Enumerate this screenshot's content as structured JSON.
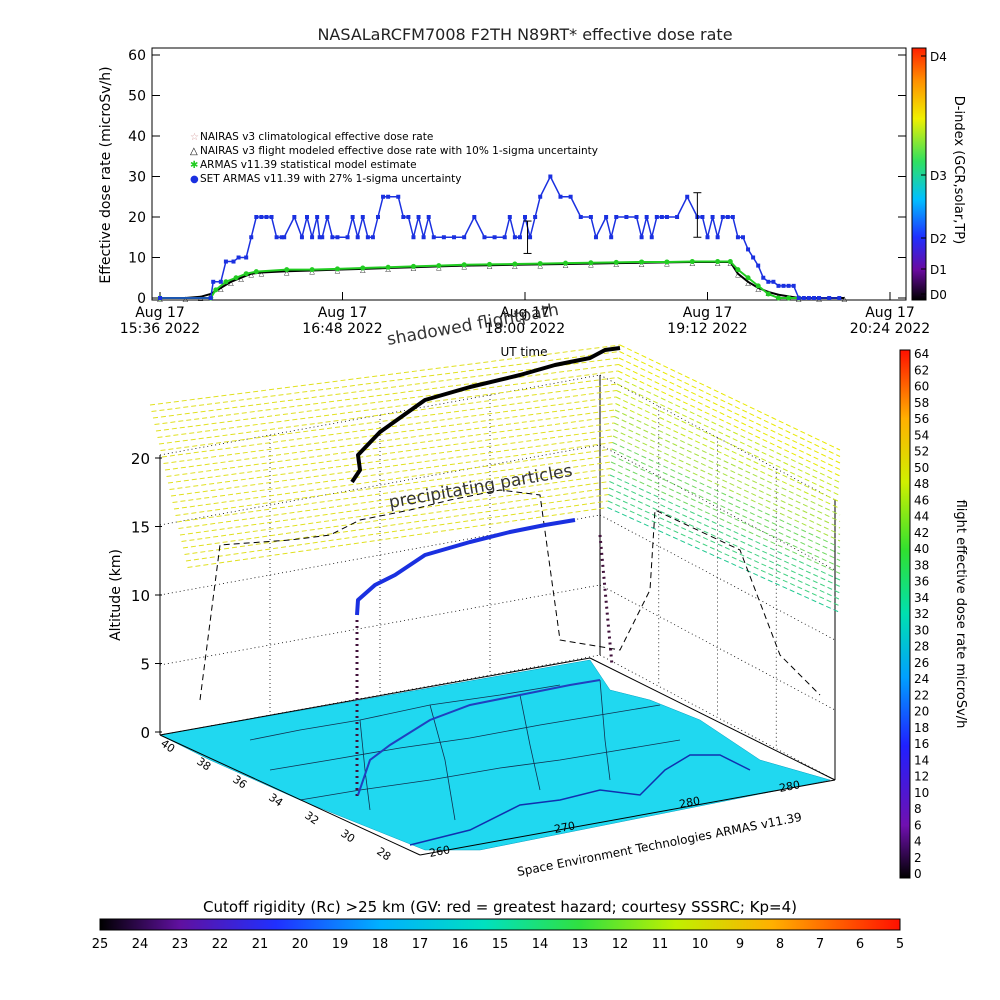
{
  "title": "NASALaRCFM7008  F2TH N89RT* effective dose rate",
  "chart_data": [
    {
      "type": "line",
      "title": "NASALaRCFM7008  F2TH N89RT* effective dose rate",
      "ylabel": "Effective dose rate (microSv/h)",
      "right_label": "D-index (GCR,solar,TP)",
      "ylim": [
        0,
        60
      ],
      "yticks": [
        "0",
        "10",
        "20",
        "30",
        "40",
        "50",
        "60"
      ],
      "xticks": [
        {
          "line1": "Aug 17",
          "line2": "15:36 2022"
        },
        {
          "line1": "Aug 17",
          "line2": "16:48 2022"
        },
        {
          "line1": "Aug 17",
          "line2": "18:00 2022"
        },
        {
          "line1": "Aug 17",
          "line2": "19:12 2022"
        },
        {
          "line1": "Aug 17",
          "line2": "20:24 2022"
        }
      ],
      "xlabel": "UT time",
      "xrange_minutes": [
        0,
        288
      ],
      "dindex_ticks": [
        "D0",
        "D1",
        "D2",
        "D3",
        "D4"
      ],
      "legend": [
        {
          "label": "NAIRAS v3 climatological effective dose rate",
          "color": "#d8a0a0"
        },
        {
          "label": "NAIRAS v3 flight modeled effective dose rate with 10% 1-sigma uncertainty",
          "color": "#000000"
        },
        {
          "label": "ARMAS v11.39 statistical model estimate",
          "color": "#22cc22"
        },
        {
          "label": "SET ARMAS v11.39 with 27% 1-sigma uncertainty",
          "color": "#1a30e0"
        }
      ],
      "series": [
        {
          "name": "SET ARMAS v11.39 with 27% 1-sigma uncertainty",
          "color": "#1a30e0",
          "x": [
            0,
            20,
            21,
            24,
            26,
            29,
            31,
            34,
            36,
            38,
            40,
            42,
            44,
            46,
            48,
            49,
            53,
            56,
            58,
            60,
            62,
            63,
            64,
            66,
            68,
            70,
            74,
            76,
            78,
            80,
            82,
            84,
            86,
            88,
            90,
            94,
            96,
            98,
            100,
            102,
            104,
            106,
            108,
            112,
            116,
            120,
            124,
            128,
            132,
            136,
            138,
            140,
            142,
            144,
            146,
            148,
            150,
            154,
            158,
            162,
            166,
            170,
            172,
            176,
            178,
            180,
            184,
            188,
            190,
            192,
            194,
            196,
            198,
            200,
            204,
            208,
            212,
            214,
            216,
            218,
            220,
            222,
            224,
            226,
            228,
            230,
            232,
            234,
            236,
            238,
            240,
            242,
            244,
            246,
            248,
            250,
            252,
            254,
            256,
            258,
            260,
            264,
            268
          ],
          "y": [
            0,
            0,
            4,
            4,
            9,
            9,
            10,
            10,
            15,
            20,
            20,
            20,
            20,
            15,
            15,
            15,
            20,
            15,
            20,
            15,
            20,
            15,
            15,
            20,
            15,
            15,
            15,
            20,
            15,
            20,
            15,
            15,
            20,
            25,
            25,
            25,
            20,
            20,
            15,
            20,
            15,
            20,
            15,
            15,
            15,
            15,
            20,
            15,
            15,
            15,
            20,
            15,
            15,
            20,
            15,
            20,
            25,
            30,
            25,
            25,
            20,
            20,
            15,
            20,
            15,
            20,
            20,
            20,
            15,
            20,
            15,
            20,
            20,
            20,
            20,
            25,
            20,
            20,
            15,
            20,
            15,
            20,
            20,
            20,
            15,
            15,
            12,
            10,
            8,
            5,
            4,
            4,
            3,
            3,
            3,
            3,
            0,
            0,
            0,
            0,
            0,
            0,
            0
          ]
        },
        {
          "name": "ARMAS v11.39 statistical model estimate",
          "color": "#22cc22",
          "x": [
            0,
            20,
            22,
            26,
            30,
            34,
            38,
            50,
            60,
            70,
            80,
            90,
            100,
            110,
            120,
            130,
            140,
            150,
            160,
            170,
            180,
            190,
            200,
            210,
            220,
            225,
            228,
            232,
            236,
            240,
            244,
            248,
            252
          ],
          "y": [
            0,
            0,
            2,
            4,
            5,
            6,
            6.5,
            7,
            7,
            7.2,
            7.4,
            7.6,
            7.8,
            8,
            8.2,
            8.3,
            8.4,
            8.5,
            8.6,
            8.7,
            8.8,
            8.9,
            8.9,
            9,
            9,
            9,
            7,
            5,
            3,
            1,
            0,
            0,
            0
          ]
        },
        {
          "name": "NAIRAS v3 flight modeled effective dose rate with 10% 1-sigma uncertainty",
          "color": "#000000",
          "x": [
            0,
            10,
            16,
            20,
            24,
            28,
            32,
            36,
            40,
            50,
            60,
            70,
            80,
            90,
            100,
            110,
            120,
            130,
            140,
            150,
            160,
            170,
            180,
            190,
            200,
            210,
            220,
            225,
            228,
            232,
            236,
            240,
            244,
            248,
            252,
            260,
            270
          ],
          "y": [
            0,
            0,
            0.3,
            1,
            2.5,
            4,
            5,
            6,
            6.3,
            6.6,
            6.8,
            7,
            7.2,
            7.4,
            7.6,
            7.8,
            8,
            8.1,
            8.2,
            8.3,
            8.4,
            8.5,
            8.6,
            8.7,
            8.8,
            8.9,
            8.9,
            8.9,
            6,
            4,
            2.5,
            1.5,
            0.8,
            0.4,
            0,
            0,
            0
          ]
        }
      ],
      "error_bars": [
        {
          "x": 145,
          "y": 15,
          "low": 11,
          "high": 19
        },
        {
          "x": 212,
          "y": 20,
          "low": 15,
          "high": 26
        }
      ]
    },
    {
      "type": "3d-flight-track",
      "annotations": [
        "shadowed flightpath",
        "precipitating particles"
      ],
      "ylabel": "Altitude (km)",
      "zticks": [
        "0",
        "5",
        "10",
        "15",
        "20"
      ],
      "lat_ticks": [
        "40",
        "38",
        "36",
        "34",
        "32",
        "30",
        "28"
      ],
      "lon_ticks": [
        "260",
        "270",
        "280",
        "280"
      ],
      "credit": "Space Environment Technologies ARMAS v11.39",
      "right_colorbar": {
        "label": "flight effective dose rate microSv/h",
        "ticks": [
          "64",
          "62",
          "60",
          "58",
          "56",
          "54",
          "52",
          "50",
          "48",
          "46",
          "44",
          "42",
          "40",
          "38",
          "36",
          "34",
          "32",
          "30",
          "28",
          "26",
          "24",
          "22",
          "20",
          "18",
          "16",
          "14",
          "12",
          "10",
          "8",
          "6",
          "4",
          "2",
          "0"
        ]
      }
    },
    {
      "type": "colorbar",
      "title": "Cutoff rigidity (Rc) >25 km (GV: red = greatest hazard; courtesy SSSRC; Kp=4)",
      "ticks": [
        "25",
        "24",
        "23",
        "22",
        "21",
        "20",
        "19",
        "18",
        "17",
        "16",
        "15",
        "14",
        "13",
        "12",
        "11",
        "10",
        "9",
        "8",
        "7",
        "6",
        "5"
      ]
    }
  ]
}
